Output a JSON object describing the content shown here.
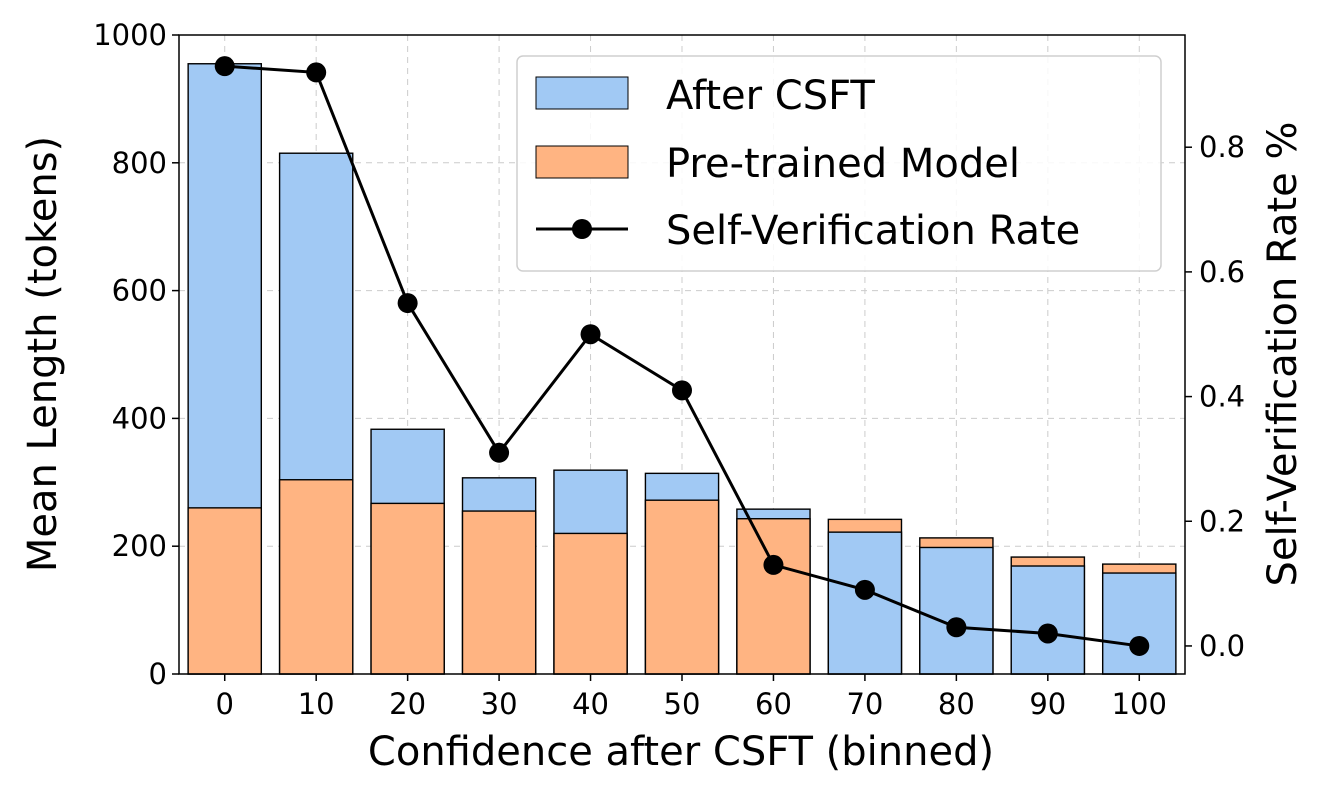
{
  "chart_data": {
    "type": "bar",
    "categories": [
      "0",
      "10",
      "20",
      "30",
      "40",
      "50",
      "60",
      "70",
      "80",
      "90",
      "100"
    ],
    "series": [
      {
        "name": "After CSFT",
        "kind": "bar",
        "axis": "left",
        "color": "#a1c9f4",
        "values": [
          955,
          815,
          383,
          307,
          319,
          314,
          258,
          222,
          198,
          169,
          158
        ]
      },
      {
        "name": "Pre-trained Model",
        "kind": "bar",
        "axis": "left",
        "color": "#ffb482",
        "values": [
          260,
          304,
          267,
          255,
          220,
          272,
          243,
          242,
          213,
          183,
          172
        ]
      },
      {
        "name": "Self-Verification Rate",
        "kind": "line",
        "axis": "right",
        "color": "#000000",
        "values": [
          0.93,
          0.92,
          0.55,
          0.31,
          0.5,
          0.41,
          0.13,
          0.09,
          0.03,
          0.02,
          0.0
        ]
      }
    ],
    "xlabel": "Confidence after CSFT (binned)",
    "ylabel": "Mean Length (tokens)",
    "y2label": "Self-Verification Rate %",
    "ylim": [
      0,
      1000
    ],
    "y2lim": [
      -0.045,
      0.98
    ],
    "yticks": [
      "0",
      "200",
      "400",
      "600",
      "800",
      "1000"
    ],
    "y2ticks": [
      "0.0",
      "0.2",
      "0.4",
      "0.6",
      "0.8"
    ],
    "grid": true,
    "legend_position": "top-right"
  }
}
